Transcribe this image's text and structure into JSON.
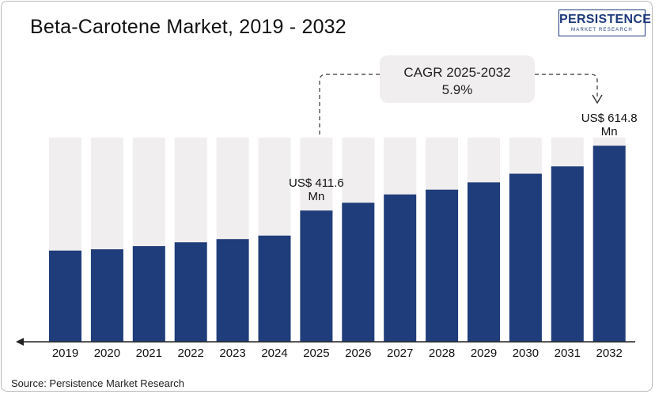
{
  "title": "Beta-Carotene Market, 2019 - 2032",
  "logo": {
    "main": "PERSISTENCE",
    "sub": "MARKET RESEARCH"
  },
  "source": "Source: Persistence Market Research",
  "cagr": {
    "label": "CAGR 2025-2032",
    "value": "5.9%"
  },
  "colors": {
    "bar": "#1f3d7a",
    "track": "#f1eeef",
    "annotation_bg": "#f1eeef",
    "axis": "#222222"
  },
  "chart_data": {
    "type": "bar",
    "title": "Beta-Carotene Market, 2019 - 2032",
    "categories": [
      "2019",
      "2020",
      "2021",
      "2022",
      "2023",
      "2024",
      "2025",
      "2026",
      "2027",
      "2028",
      "2029",
      "2030",
      "2031",
      "2032"
    ],
    "series": [
      {
        "values": [
          286,
          290,
          300,
          312,
          322,
          333,
          411.6,
          436,
          462,
          477,
          500,
          527,
          550,
          614.8
        ]
      }
    ],
    "ylim": [
      0,
      640
    ],
    "grid": false,
    "data_labels": [
      {
        "category": "2025",
        "lines": [
          "US$ 411.6",
          "Mn"
        ]
      },
      {
        "category": "2032",
        "lines": [
          "US$ 614.8",
          "Mn"
        ]
      }
    ]
  }
}
